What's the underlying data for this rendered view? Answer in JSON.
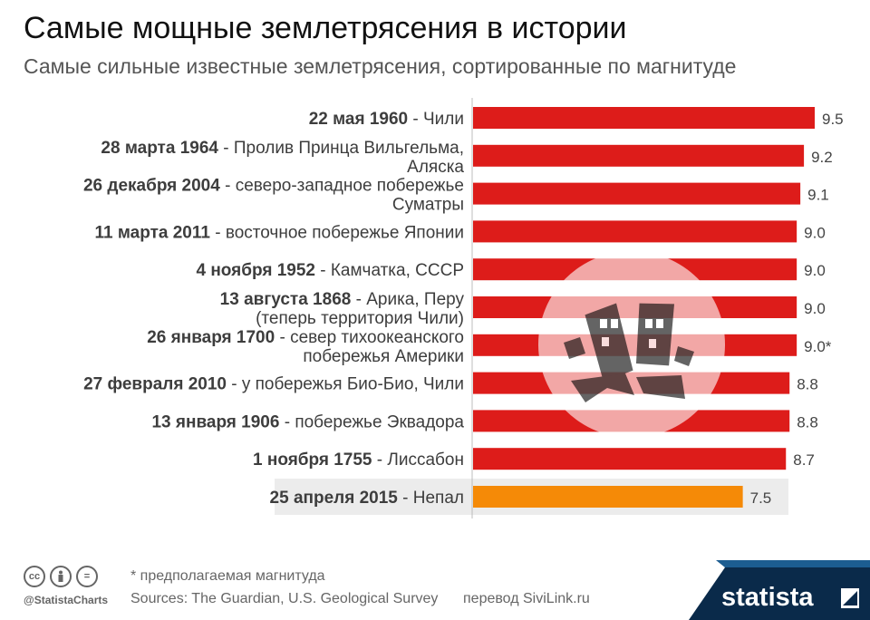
{
  "header": {
    "title": "Самые мощные землетрясения в истории",
    "subtitle": "Самые сильные известные землетрясения, сортированные по магнитуде"
  },
  "chart_data": {
    "type": "bar",
    "orientation": "horizontal",
    "bar_color": "#dd1c1a",
    "highlight_color": "#f58a07",
    "categories": [
      {
        "date": "22 мая 1960",
        "place": [
          "Чили"
        ]
      },
      {
        "date": "28 марта 1964",
        "place": [
          "Пролив Принца Вильгельма,",
          "Аляска"
        ]
      },
      {
        "date": "26 декабря 2004",
        "place": [
          "северо-западное побережье",
          "Суматры"
        ]
      },
      {
        "date": "11 марта 2011",
        "place": [
          "восточное побережье Японии"
        ]
      },
      {
        "date": "4 ноября 1952",
        "place": [
          "Камчатка, СССР"
        ]
      },
      {
        "date": "13 августа 1868",
        "place": [
          "Арика, Перу",
          "(теперь территория Чили)"
        ]
      },
      {
        "date": "26 января 1700",
        "place": [
          "север тихоокеанского",
          "побережья Америки"
        ]
      },
      {
        "date": "27 февраля 2010",
        "place": [
          "у побережья Био-Био, Чили"
        ]
      },
      {
        "date": "13 января 1906",
        "place": [
          "побережье Эквадора"
        ]
      },
      {
        "date": "1 ноября 1755",
        "place": [
          "Лиссабон"
        ]
      },
      {
        "date": "25 апреля 2015",
        "place": [
          "Непал"
        ]
      }
    ],
    "values": [
      9.5,
      9.2,
      9.1,
      9.0,
      9.0,
      9.0,
      9.0,
      8.8,
      8.8,
      8.7,
      7.5
    ],
    "value_labels": [
      "9.5",
      "9.2",
      "9.1",
      "9.0",
      "9.0",
      "9.0",
      "9.0*",
      "8.8",
      "8.8",
      "8.7",
      "7.5"
    ],
    "highlighted_index": 10,
    "xlim": [
      0,
      9.5
    ],
    "grid": false
  },
  "footer": {
    "note": "* предполагаемая магнитуда",
    "sources": "Sources: The Guardian, U.S. Geological Survey",
    "translation": "перевод SiviLink.ru",
    "handle": "@StatistaCharts",
    "brand": "statista",
    "cc_icons": [
      "cc",
      "by",
      "="
    ]
  }
}
